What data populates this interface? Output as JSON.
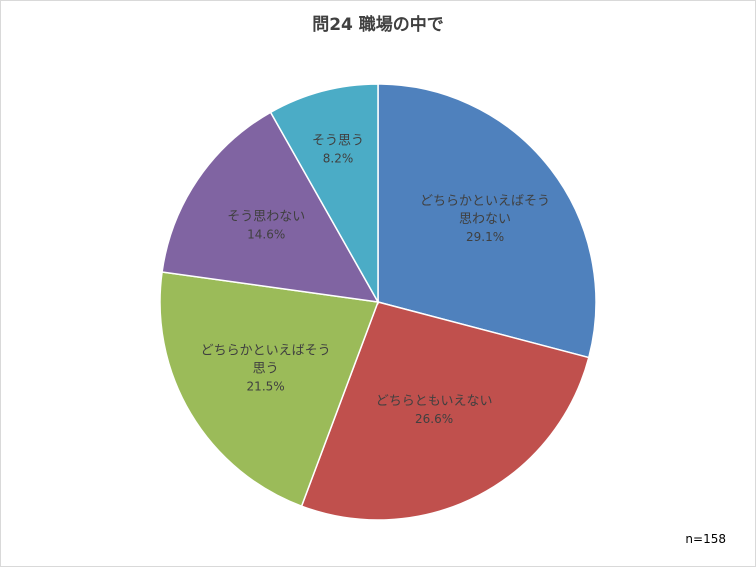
{
  "chart_data": {
    "type": "pie",
    "title": "問24  職場の中で",
    "note": "n=158",
    "slices": [
      {
        "label_lines": [
          "どちらかといえばそう",
          "思わない"
        ],
        "percent_label": "29.1%",
        "value": 29.1,
        "color": "#4f81bd"
      },
      {
        "label_lines": [
          "どちらともいえない"
        ],
        "percent_label": "26.6%",
        "value": 26.6,
        "color": "#c0504d"
      },
      {
        "label_lines": [
          "どちらかといえばそう",
          "思う"
        ],
        "percent_label": "21.5%",
        "value": 21.5,
        "color": "#9bbb59"
      },
      {
        "label_lines": [
          "そう思わない"
        ],
        "percent_label": "14.6%",
        "value": 14.6,
        "color": "#8064a2"
      },
      {
        "label_lines": [
          "そう思う"
        ],
        "percent_label": "8.2%",
        "value": 8.2,
        "color": "#4bacc6"
      }
    ]
  }
}
